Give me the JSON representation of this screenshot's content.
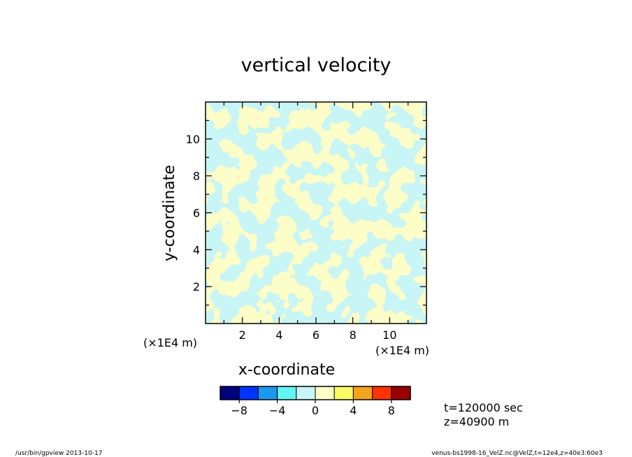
{
  "chart_data": {
    "type": "heatmap",
    "title": "vertical velocity",
    "xlabel": "x-coordinate",
    "ylabel": "y-coordinate",
    "x_unit": "(×1E4 m)",
    "y_unit": "(×1E4 m)",
    "xlim": [
      0,
      12
    ],
    "ylim": [
      0,
      12
    ],
    "x_ticks": [
      2,
      4,
      6,
      8,
      10
    ],
    "y_ticks": [
      2,
      4,
      6,
      8,
      10
    ],
    "x_tick_labels": [
      "2",
      "4",
      "6",
      "8",
      "10"
    ],
    "y_tick_labels": [
      "2",
      "4",
      "6",
      "8",
      "10"
    ],
    "colorbar": {
      "levels": [
        -10,
        -8,
        -6,
        -4,
        -2,
        0,
        2,
        4,
        6,
        8,
        10
      ],
      "colors": [
        "#00007f",
        "#0033ff",
        "#1a99ee",
        "#66f5f5",
        "#c8f5f5",
        "#fdfdc8",
        "#fafa66",
        "#f5a31a",
        "#ff3300",
        "#990000"
      ],
      "tick_values": [
        -8,
        -4,
        0,
        4,
        8
      ],
      "tick_labels": [
        "−8",
        "−4",
        "0",
        "4",
        "8"
      ]
    },
    "field_description_colors": {
      "negative": "#c8f5f5",
      "positive": "#fdfdc8"
    },
    "time_label": "t=120000 sec",
    "height_label": "z=40900 m"
  },
  "footer": {
    "left": "/usr/bin/gpview   2013-10-17",
    "right": "venus-bs1998-16_VelZ.nc@VelZ,t=12e4,z=40e3:60e3"
  }
}
